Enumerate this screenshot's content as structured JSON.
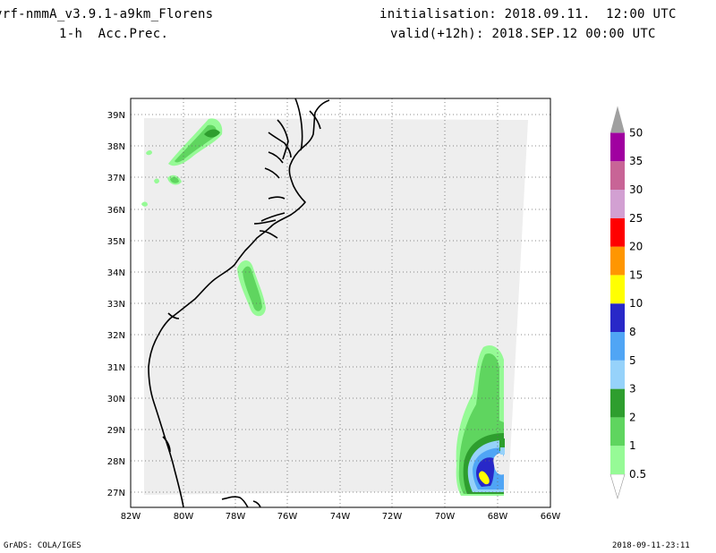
{
  "header": {
    "model": "vrf-nmmA_v3.9.1-a9km_Florens",
    "field": "1-h  Acc.Prec.",
    "init": "initialisation: 2018.09.11.  12:00 UTC",
    "valid": "valid(+12h): 2018.SEP.12 00:00 UTC"
  },
  "footer": {
    "left": "GrADS: COLA/IGES",
    "right": "2018-09-11-23:11"
  },
  "map": {
    "lon_labels": [
      "82W",
      "80W",
      "78W",
      "76W",
      "74W",
      "72W",
      "70W",
      "68W",
      "66W"
    ],
    "lat_labels": [
      "27N",
      "28N",
      "29N",
      "30N",
      "31N",
      "32N",
      "33N",
      "34N",
      "35N",
      "36N",
      "37N",
      "38N",
      "39N"
    ],
    "lon_range": [
      -82,
      -66
    ],
    "lat_range": [
      26.6,
      39.5
    ],
    "grid_lines": "dotted",
    "domain_fill": "#eeeeee"
  },
  "colorbar": {
    "levels": [
      "0.5",
      "1",
      "2",
      "3",
      "5",
      "8",
      "10",
      "15",
      "20",
      "25",
      "30",
      "35",
      "50"
    ],
    "colors": [
      "#96fa96",
      "#5fd55f",
      "#2e9e2e",
      "#96d2fa",
      "#50a5f5",
      "#2828c8",
      "#ffff00",
      "#ff9600",
      "#ff0000",
      "#d2a0d2",
      "#c86496",
      "#a000a0",
      "#a0a0a0"
    ]
  }
}
